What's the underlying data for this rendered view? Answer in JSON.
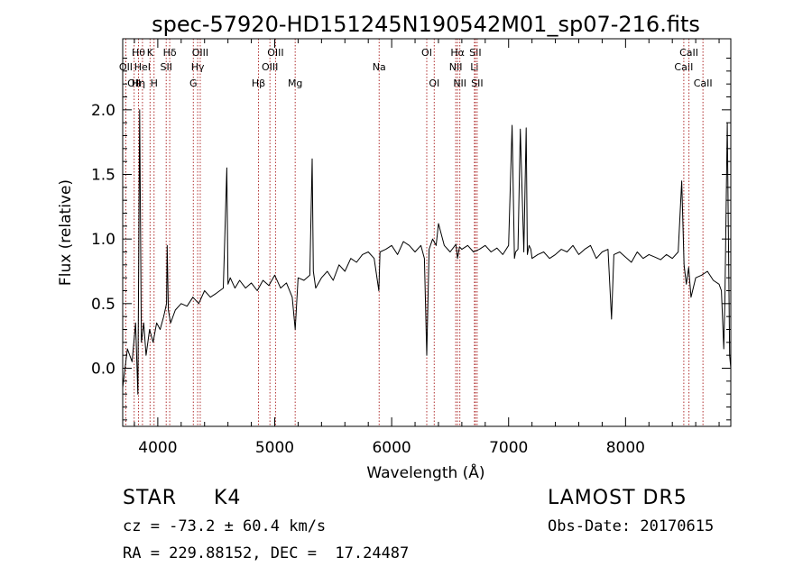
{
  "chart_data": {
    "type": "line",
    "title": "spec-57920-HD151245N190542M01_sp07-216.fits",
    "xlabel": "Wavelength (Å)",
    "ylabel": "Flux (relative)",
    "xlim": [
      3700,
      8900
    ],
    "ylim": [
      -0.45,
      2.55
    ],
    "x_ticks": [
      4000,
      5000,
      6000,
      7000,
      8000
    ],
    "x_tick_labels": [
      "4000",
      "5000",
      "6000",
      "7000",
      "8000"
    ],
    "y_ticks": [
      0.0,
      0.5,
      1.0,
      1.5,
      2.0
    ],
    "y_tick_labels": [
      "0.0",
      "0.5",
      "1.0",
      "1.5",
      "2.0"
    ],
    "grid": false,
    "line_color": "#000000",
    "marker_line_color": "#b03030",
    "series": [
      {
        "x": [
          3700,
          3740,
          3780,
          3810,
          3830,
          3845,
          3860,
          3880,
          3900,
          3930,
          3960,
          3990,
          4020,
          4050,
          4075,
          4080,
          4090,
          4110,
          4150,
          4200,
          4250,
          4300,
          4350,
          4400,
          4450,
          4500,
          4560,
          4590,
          4600,
          4620,
          4660,
          4700,
          4750,
          4800,
          4850,
          4900,
          4950,
          5000,
          5050,
          5100,
          5150,
          5175,
          5200,
          5250,
          5300,
          5320,
          5330,
          5350,
          5400,
          5450,
          5500,
          5550,
          5600,
          5650,
          5700,
          5750,
          5800,
          5850,
          5890,
          5900,
          5950,
          6000,
          6050,
          6100,
          6150,
          6200,
          6250,
          6280,
          6300,
          6320,
          6350,
          6380,
          6400,
          6450,
          6500,
          6550,
          6563,
          6580,
          6600,
          6650,
          6700,
          6750,
          6800,
          6850,
          6900,
          6950,
          7000,
          7030,
          7050,
          7060,
          7080,
          7100,
          7130,
          7150,
          7160,
          7175,
          7190,
          7200,
          7250,
          7300,
          7350,
          7400,
          7450,
          7500,
          7550,
          7600,
          7650,
          7700,
          7750,
          7800,
          7850,
          7880,
          7900,
          7950,
          8000,
          8050,
          8100,
          8150,
          8200,
          8250,
          8300,
          8350,
          8400,
          8450,
          8480,
          8500,
          8520,
          8540,
          8560,
          8600,
          8650,
          8700,
          8750,
          8800,
          8820,
          8840,
          8850,
          8870,
          8890,
          8900
        ],
        "y": [
          -0.15,
          0.15,
          0.05,
          0.35,
          -0.2,
          2.0,
          0.2,
          0.35,
          0.1,
          0.3,
          0.2,
          0.35,
          0.3,
          0.4,
          0.5,
          0.95,
          0.45,
          0.35,
          0.45,
          0.5,
          0.48,
          0.55,
          0.5,
          0.6,
          0.55,
          0.58,
          0.62,
          1.55,
          0.65,
          0.7,
          0.62,
          0.68,
          0.62,
          0.66,
          0.6,
          0.68,
          0.64,
          0.72,
          0.62,
          0.66,
          0.55,
          0.3,
          0.7,
          0.68,
          0.72,
          1.62,
          0.75,
          0.62,
          0.7,
          0.75,
          0.68,
          0.8,
          0.75,
          0.85,
          0.82,
          0.88,
          0.9,
          0.85,
          0.6,
          0.9,
          0.92,
          0.95,
          0.88,
          0.98,
          0.95,
          0.9,
          0.95,
          0.85,
          0.1,
          0.92,
          1.0,
          0.95,
          1.12,
          0.95,
          0.9,
          0.96,
          0.85,
          0.94,
          0.92,
          0.95,
          0.9,
          0.92,
          0.95,
          0.9,
          0.93,
          0.88,
          0.95,
          1.88,
          0.85,
          0.9,
          0.92,
          1.85,
          0.9,
          1.86,
          0.88,
          0.95,
          0.92,
          0.85,
          0.88,
          0.9,
          0.85,
          0.88,
          0.92,
          0.9,
          0.95,
          0.88,
          0.92,
          0.95,
          0.85,
          0.9,
          0.92,
          0.38,
          0.88,
          0.9,
          0.86,
          0.82,
          0.9,
          0.85,
          0.88,
          0.86,
          0.84,
          0.88,
          0.85,
          0.9,
          1.45,
          0.8,
          0.65,
          0.78,
          0.55,
          0.7,
          0.72,
          0.75,
          0.68,
          0.65,
          0.6,
          0.15,
          0.55,
          1.9,
          0.1,
          0.0
        ]
      }
    ],
    "line_markers": [
      {
        "x": 3727,
        "label": "OII",
        "row": 2
      },
      {
        "x": 3798,
        "label": "OII",
        "row": 3
      },
      {
        "x": 3835,
        "label": "Hθ",
        "row": 1
      },
      {
        "x": 3835,
        "label": "Hη",
        "row": 3
      },
      {
        "x": 3869,
        "label": "HeI",
        "row": 2
      },
      {
        "x": 3934,
        "label": "K",
        "row": 1
      },
      {
        "x": 3968,
        "label": "H",
        "row": 3
      },
      {
        "x": 4072,
        "label": "SII",
        "row": 2
      },
      {
        "x": 4102,
        "label": "Hδ",
        "row": 1
      },
      {
        "x": 4304,
        "label": "G",
        "row": 3
      },
      {
        "x": 4341,
        "label": "Hγ",
        "row": 2
      },
      {
        "x": 4363,
        "label": "OIII",
        "row": 1
      },
      {
        "x": 4861,
        "label": "Hβ",
        "row": 3
      },
      {
        "x": 4959,
        "label": "OIII",
        "row": 2
      },
      {
        "x": 5007,
        "label": "OIII",
        "row": 1
      },
      {
        "x": 5175,
        "label": "Mg",
        "row": 3
      },
      {
        "x": 5893,
        "label": "Na",
        "row": 2
      },
      {
        "x": 6300,
        "label": "OI",
        "row": 1
      },
      {
        "x": 6364,
        "label": "OI",
        "row": 3
      },
      {
        "x": 6548,
        "label": "NII",
        "row": 2
      },
      {
        "x": 6563,
        "label": "Hα",
        "row": 1
      },
      {
        "x": 6583,
        "label": "NII",
        "row": 3
      },
      {
        "x": 6708,
        "label": "Li",
        "row": 2
      },
      {
        "x": 6716,
        "label": "SII",
        "row": 1
      },
      {
        "x": 6731,
        "label": "SII",
        "row": 3
      },
      {
        "x": 8498,
        "label": "CaII",
        "row": 2
      },
      {
        "x": 8542,
        "label": "CaII",
        "row": 1
      },
      {
        "x": 8662,
        "label": "CaII",
        "row": 3
      }
    ]
  },
  "info": {
    "object_class": "STAR",
    "subclass": "K4",
    "survey": "LAMOST DR5",
    "cz": "cz = -73.2 ± 60.4 km/s",
    "obs_date": "Obs-Date: 20170615",
    "coords": "RA = 229.88152, DEC =  17.24487"
  }
}
